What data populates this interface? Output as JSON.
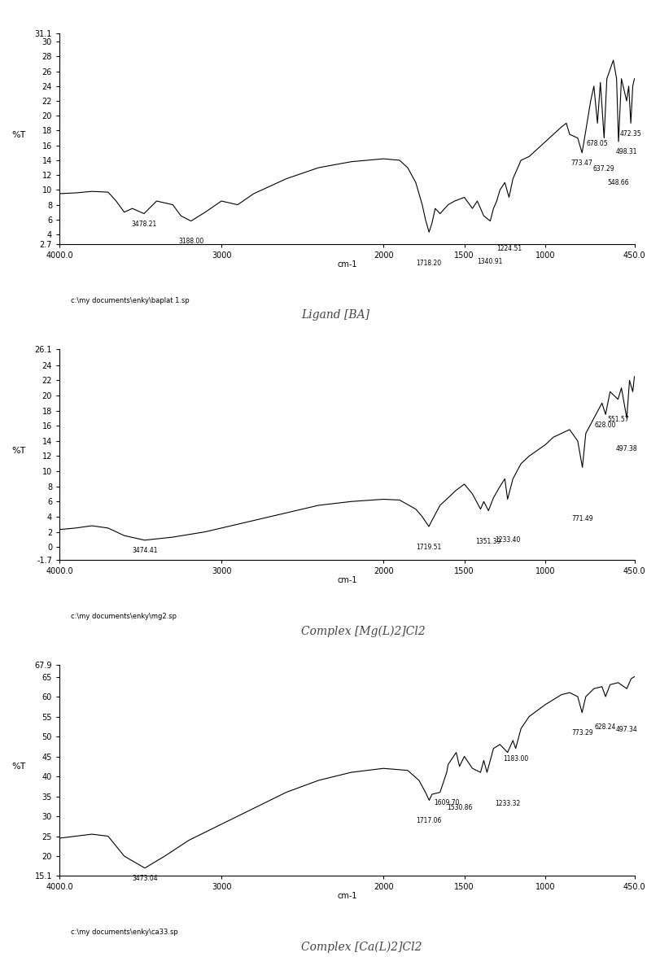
{
  "chart_data": [
    {
      "type": "line",
      "caption": "Ligand [BA]",
      "file": "c:\\my documents\\enky\\baplat 1.sp",
      "x_label": "cm-1",
      "y_label": "%T",
      "color": "#000000",
      "xlim": [
        4000,
        450
      ],
      "ylim": [
        2.7,
        31.1
      ],
      "xticks": [
        {
          "value": 4000,
          "label": "4000.0"
        },
        3000,
        2000,
        1500,
        1000,
        {
          "value": 450,
          "label": "450.0"
        }
      ],
      "yticks": [
        2.7,
        4,
        6,
        8,
        10,
        12,
        14,
        16,
        18,
        20,
        22,
        24,
        26,
        28,
        30,
        31.1
      ],
      "x": [
        4000,
        3900,
        3800,
        3700,
        3650,
        3600,
        3550,
        3478,
        3400,
        3300,
        3250,
        3188,
        3100,
        3000,
        2900,
        2800,
        2600,
        2400,
        2200,
        2000,
        1900,
        1850,
        1800,
        1760,
        1740,
        1718,
        1700,
        1680,
        1650,
        1600,
        1560,
        1500,
        1450,
        1420,
        1380,
        1340,
        1320,
        1300,
        1280,
        1250,
        1224,
        1200,
        1150,
        1100,
        1050,
        1000,
        950,
        900,
        870,
        850,
        800,
        773,
        750,
        720,
        700,
        678,
        660,
        637,
        620,
        580,
        560,
        548,
        530,
        498,
        485,
        472,
        460,
        450
      ],
      "values": [
        9.5,
        9.6,
        9.8,
        9.7,
        8.5,
        7.0,
        7.5,
        6.8,
        8.5,
        8.0,
        6.5,
        5.8,
        7.0,
        8.5,
        8.0,
        9.5,
        11.5,
        13.0,
        13.8,
        14.2,
        14.0,
        13.0,
        11.0,
        8.0,
        6.0,
        4.3,
        5.5,
        7.5,
        6.8,
        8.0,
        8.5,
        9.0,
        7.5,
        8.5,
        6.5,
        5.8,
        7.5,
        8.5,
        10.0,
        11.0,
        9.0,
        11.5,
        14.0,
        14.5,
        15.5,
        16.5,
        17.5,
        18.5,
        19.0,
        17.5,
        17.0,
        15.0,
        18.0,
        22.0,
        24.0,
        19.0,
        24.5,
        17.0,
        25.0,
        27.5,
        25.0,
        16.5,
        25.0,
        22.0,
        24.0,
        19.0,
        24.0,
        25.0
      ],
      "annotations": [
        {
          "text": "3478.21",
          "x": 3478.21,
          "y": 6.8
        },
        {
          "text": "3188.00",
          "x": 3188.0,
          "y": 5.8
        },
        {
          "text": "1718.20",
          "x": 1718.2,
          "y": 4.3
        },
        {
          "text": "1340.91",
          "x": 1340.91,
          "y": 5.8
        },
        {
          "text": "1224.51",
          "x": 1224.51,
          "y": 9.0
        },
        {
          "text": "773.47",
          "x": 773.47,
          "y": 15.0
        },
        {
          "text": "678.05",
          "x": 678.05,
          "y": 19.0
        },
        {
          "text": "637.29",
          "x": 637.29,
          "y": 17.0
        },
        {
          "text": "548.66",
          "x": 548.66,
          "y": 16.5
        },
        {
          "text": "498.31",
          "x": 498.31,
          "y": 22.0
        },
        {
          "text": "472.35",
          "x": 472.35,
          "y": 19.0
        }
      ]
    },
    {
      "type": "line",
      "caption": "Complex [Mg(L)2]Cl2",
      "file": "c:\\my documents\\enky\\mg2.sp",
      "x_label": "cm-1",
      "y_label": "%T",
      "color": "#000000",
      "xlim": [
        4000,
        450
      ],
      "ylim": [
        -1.7,
        26.1
      ],
      "xticks": [
        {
          "value": 4000,
          "label": "4000.0"
        },
        3000,
        2000,
        1500,
        1000,
        {
          "value": 450,
          "label": "450.0"
        }
      ],
      "yticks": [
        -1.7,
        0,
        2,
        4,
        6,
        8,
        10,
        12,
        14,
        16,
        18,
        20,
        22,
        24,
        26.1
      ],
      "x": [
        4000,
        3900,
        3800,
        3700,
        3600,
        3474,
        3300,
        3100,
        3000,
        2800,
        2600,
        2400,
        2200,
        2000,
        1900,
        1800,
        1760,
        1719,
        1700,
        1650,
        1600,
        1550,
        1500,
        1450,
        1400,
        1380,
        1351,
        1320,
        1280,
        1250,
        1233,
        1200,
        1150,
        1100,
        1000,
        950,
        900,
        850,
        800,
        771,
        750,
        700,
        650,
        628,
        600,
        551,
        530,
        497,
        480,
        460,
        450
      ],
      "values": [
        2.3,
        2.5,
        2.8,
        2.5,
        1.5,
        0.9,
        1.3,
        2.0,
        2.5,
        3.5,
        4.5,
        5.5,
        6.0,
        6.3,
        6.2,
        5.0,
        4.0,
        2.7,
        3.5,
        5.5,
        6.5,
        7.5,
        8.3,
        7.0,
        5.0,
        6.0,
        4.8,
        6.5,
        8.0,
        9.0,
        6.3,
        9.0,
        11.0,
        12.0,
        13.5,
        14.5,
        15.0,
        15.5,
        14.0,
        10.5,
        15.0,
        17.0,
        19.0,
        17.5,
        20.5,
        19.5,
        21.0,
        17.0,
        22.0,
        20.5,
        22.5
      ],
      "annotations": [
        {
          "text": "3474.41",
          "x": 3474.41,
          "y": 0.9
        },
        {
          "text": "1719.51",
          "x": 1719.51,
          "y": 2.7
        },
        {
          "text": "1351.39",
          "x": 1351.39,
          "y": 4.8
        },
        {
          "text": "1233.40",
          "x": 1233.4,
          "y": 6.3
        },
        {
          "text": "771.49",
          "x": 771.49,
          "y": 10.5
        },
        {
          "text": "628.00",
          "x": 628.0,
          "y": 17.5
        },
        {
          "text": "551.57",
          "x": 551.57,
          "y": 19.5
        },
        {
          "text": "497.38",
          "x": 497.38,
          "y": 17.0
        }
      ]
    },
    {
      "type": "line",
      "caption": "Complex [Ca(L)2]Cl2",
      "file": "c:\\my documents\\enky\\ca33.sp",
      "x_label": "cm-1",
      "y_label": "%T",
      "color": "#000000",
      "xlim": [
        4000,
        450
      ],
      "ylim": [
        15.1,
        67.9
      ],
      "xticks": [
        {
          "value": 4000,
          "label": "4000.0"
        },
        3000,
        2000,
        1500,
        1000,
        {
          "value": 450,
          "label": "450.0"
        }
      ],
      "yticks": [
        15.1,
        20,
        25,
        30,
        35,
        40,
        45,
        50,
        55,
        60,
        65,
        67.9
      ],
      "x": [
        4000,
        3800,
        3700,
        3600,
        3473,
        3350,
        3200,
        3000,
        2800,
        2600,
        2400,
        2200,
        2000,
        1850,
        1780,
        1740,
        1717,
        1700,
        1650,
        1609,
        1600,
        1550,
        1530,
        1500,
        1450,
        1400,
        1380,
        1360,
        1320,
        1280,
        1233,
        1200,
        1183,
        1150,
        1100,
        1000,
        900,
        850,
        800,
        773,
        750,
        700,
        650,
        628,
        600,
        550,
        497,
        470,
        450
      ],
      "values": [
        24.5,
        25.5,
        25.0,
        20.0,
        17.0,
        20.0,
        24.0,
        28.0,
        32.0,
        36.0,
        39.0,
        41.0,
        42.0,
        41.5,
        39.0,
        36.0,
        34.0,
        35.5,
        36.0,
        41.0,
        43.0,
        46.0,
        42.5,
        45.0,
        42.0,
        41.0,
        44.0,
        41.0,
        47.0,
        48.0,
        46.0,
        49.0,
        47.0,
        52.0,
        55.0,
        58.0,
        60.5,
        61.0,
        60.0,
        56.0,
        60.0,
        62.0,
        62.5,
        60.0,
        63.0,
        63.5,
        62.0,
        64.5,
        65.0
      ],
      "annotations": [
        {
          "text": "3473.04",
          "x": 3473.04,
          "y": 17.0
        },
        {
          "text": "1717.06",
          "x": 1717.06,
          "y": 34.0
        },
        {
          "text": "1609.70",
          "x": 1609.7,
          "y": 41.0
        },
        {
          "text": "1530.86",
          "x": 1530.86,
          "y": 42.5
        },
        {
          "text": "1233.32",
          "x": 1233.32,
          "y": 46.0
        },
        {
          "text": "1183.00",
          "x": 1183.0,
          "y": 47.0
        },
        {
          "text": "773.29",
          "x": 773.29,
          "y": 56.0
        },
        {
          "text": "628.24",
          "x": 628.24,
          "y": 60.0
        },
        {
          "text": "497.34",
          "x": 497.34,
          "y": 62.0
        }
      ]
    }
  ]
}
